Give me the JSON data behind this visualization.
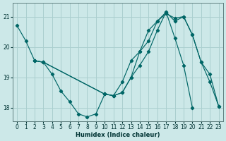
{
  "xlabel": "Humidex (Indice chaleur)",
  "bg_color": "#cce8e8",
  "grid_color": "#aacfcf",
  "line_color": "#006666",
  "xlim": [
    -0.5,
    23.5
  ],
  "ylim": [
    17.55,
    21.45
  ],
  "yticks": [
    18,
    19,
    20,
    21
  ],
  "xticks": [
    0,
    1,
    2,
    3,
    4,
    5,
    6,
    7,
    8,
    9,
    10,
    11,
    12,
    13,
    14,
    15,
    16,
    17,
    18,
    19,
    20,
    21,
    22,
    23
  ],
  "line1_x": [
    0,
    1,
    2,
    3,
    4,
    5,
    6,
    7,
    8,
    9,
    10,
    11,
    12,
    13,
    14,
    15,
    16,
    17,
    18,
    19,
    20
  ],
  "line1_y": [
    20.7,
    20.2,
    19.55,
    19.5,
    19.1,
    18.55,
    18.2,
    17.8,
    17.7,
    17.8,
    18.45,
    18.4,
    18.85,
    19.55,
    19.85,
    20.55,
    20.85,
    21.15,
    20.3,
    19.4,
    18.0
  ],
  "line2_x": [
    2,
    3,
    10,
    11,
    12,
    13,
    14,
    15,
    16,
    17,
    18,
    19,
    20,
    21,
    22,
    23
  ],
  "line2_y": [
    19.55,
    19.5,
    18.45,
    18.4,
    18.5,
    19.0,
    19.4,
    19.85,
    20.55,
    21.15,
    20.85,
    21.0,
    20.4,
    19.5,
    19.1,
    18.05
  ],
  "line3_x": [
    2,
    3,
    10,
    11,
    12,
    13,
    14,
    15,
    16,
    17,
    18,
    19,
    20,
    21,
    22,
    23
  ],
  "line3_y": [
    19.55,
    19.5,
    18.45,
    18.4,
    18.5,
    19.0,
    19.85,
    20.2,
    20.85,
    21.1,
    20.95,
    21.0,
    20.4,
    19.5,
    18.85,
    18.05
  ]
}
